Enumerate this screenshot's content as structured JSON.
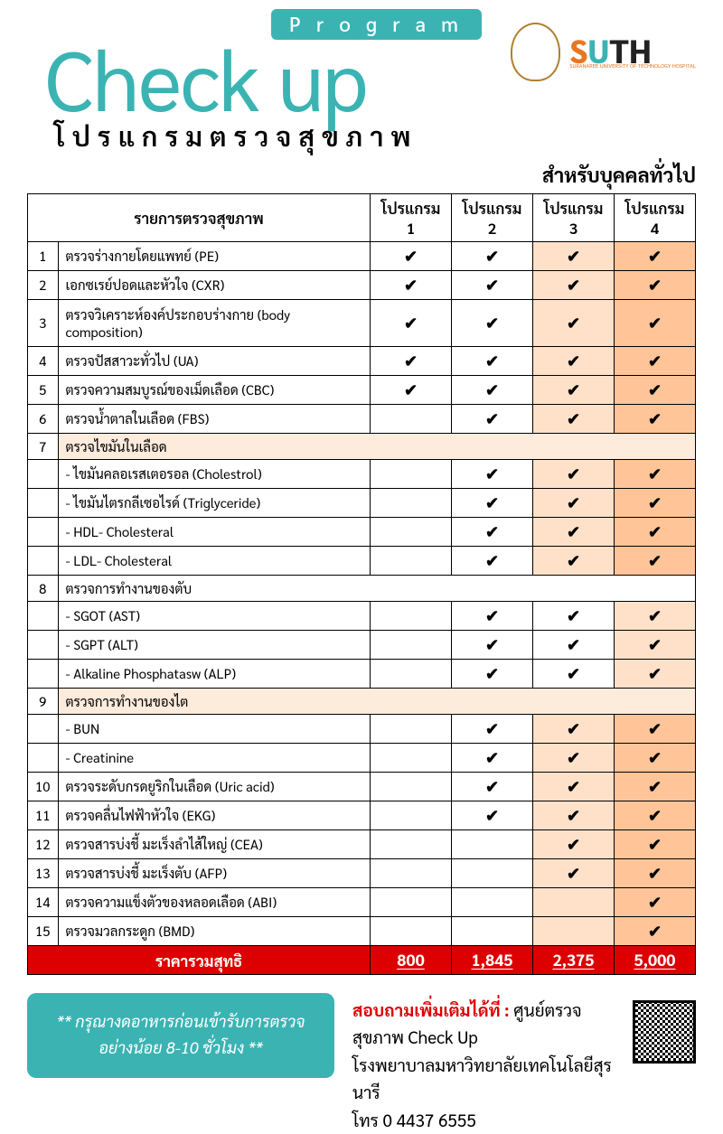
{
  "header": {
    "program_label": "P r o g r a m",
    "main_title": "Check up",
    "subtitle": "โปรแกรมตรวจสุขภาพ",
    "audience": "สำหรับบุคคลทั่วไป",
    "logo2_s": "S",
    "logo2_u": "U",
    "logo2_th": "TH",
    "logo2_sub": "SURANAREE UNIVERSITY OF TECHNOLOGY HOSPITAL"
  },
  "table": {
    "header_item": "รายการตรวจสุขภาพ",
    "programs": [
      "โปรแกรม 1",
      "โปรแกรม 2",
      "โปรแกรม 3",
      "โปรแกรม 4"
    ],
    "rows": [
      {
        "n": "1",
        "label": "ตรวจร่างกายโดยแพทย์ (PE)",
        "c": [
          true,
          true,
          true,
          true
        ]
      },
      {
        "n": "2",
        "label": "เอกซเรย์ปอดและหัวใจ (CXR)",
        "c": [
          true,
          true,
          true,
          true
        ]
      },
      {
        "n": "3",
        "label": "ตรวจวิเคราะห์องค์ประกอบร่างกาย (body composition)",
        "c": [
          true,
          true,
          true,
          true
        ],
        "tall": true
      },
      {
        "n": "4",
        "label": "ตรวจปัสสาวะทั่วไป (UA)",
        "c": [
          true,
          true,
          true,
          true
        ]
      },
      {
        "n": "5",
        "label": "ตรวจความสมบูรณ์ของเม็ดเลือด (CBC)",
        "c": [
          true,
          true,
          true,
          true
        ]
      },
      {
        "n": "6",
        "label": "ตรวจน้ำตาลในเลือด (FBS)",
        "c": [
          false,
          true,
          true,
          true
        ]
      },
      {
        "n": "7",
        "label": "ตรวจไขมันในเลือด",
        "group": true
      },
      {
        "sub": true,
        "label": "- ไขมันคลอเรสเตอรอล (Cholestrol)",
        "c": [
          false,
          true,
          true,
          true
        ]
      },
      {
        "sub": true,
        "label": "- ไขมันไตรกลีเซอไรด์ (Triglyceride)",
        "c": [
          false,
          true,
          true,
          true
        ]
      },
      {
        "sub": true,
        "label": "- HDL- Cholesteral",
        "c": [
          false,
          true,
          true,
          true
        ]
      },
      {
        "sub": true,
        "label": "- LDL- Cholesteral",
        "c": [
          false,
          true,
          true,
          true
        ]
      },
      {
        "n": "8",
        "label": "ตรวจการทำงานของตับ",
        "group": true,
        "whitegrp": true
      },
      {
        "sub": true,
        "label": "- SGOT (AST)",
        "c": [
          false,
          true,
          true,
          true
        ],
        "whitec3": true
      },
      {
        "sub": true,
        "label": "- SGPT (ALT)",
        "c": [
          false,
          true,
          true,
          true
        ],
        "whitec3": true
      },
      {
        "sub": true,
        "label": "- Alkaline Phosphatasw (ALP)",
        "c": [
          false,
          true,
          true,
          true
        ],
        "whitec3": true
      },
      {
        "n": "9",
        "label": "ตรวจการทำงานของไต",
        "group": true
      },
      {
        "sub": true,
        "label": "- BUN",
        "c": [
          false,
          true,
          true,
          true
        ]
      },
      {
        "sub": true,
        "label": "- Creatinine",
        "c": [
          false,
          true,
          true,
          true
        ]
      },
      {
        "n": "10",
        "label": "ตรวจระดับกรดยูริกในเลือด (Uric acid)",
        "c": [
          false,
          true,
          true,
          true
        ]
      },
      {
        "n": "11",
        "label": "ตรวจคลื่นไฟฟ้าหัวใจ (EKG)",
        "c": [
          false,
          true,
          true,
          true
        ]
      },
      {
        "n": "12",
        "label": "ตรวจสารบ่งชี้ มะเร็งลำไส้ใหญ่ (CEA)",
        "c": [
          false,
          false,
          true,
          true
        ]
      },
      {
        "n": "13",
        "label": "ตรวจสารบ่งชี้ มะเร็งตับ (AFP)",
        "c": [
          false,
          false,
          true,
          true
        ]
      },
      {
        "n": "14",
        "label": "ตรวจความแข็งตัวของหลอดเลือด (ABI)",
        "c": [
          false,
          false,
          false,
          true
        ]
      },
      {
        "n": "15",
        "label": "ตรวจมวลกระดูก (BMD)",
        "c": [
          false,
          false,
          false,
          true
        ]
      }
    ],
    "price_label": "ราคารวมสุทธิ",
    "prices": [
      "800",
      "1,845",
      "2,375",
      "5,000"
    ]
  },
  "footer": {
    "fasting_l1": "** กรุณางดอาหารก่อนเข้ารับการตรวจ",
    "fasting_l2": "อย่างน้อย 8-10 ชั่วโมง **",
    "contact_lead": "สอบถามเพิ่มเติมได้ที่ :",
    "contact_center": " ศูนย์ตรวจสุขภาพ Check Up",
    "contact_hospital": "โรงพยาบาลมหาวิทยาลัยเทคโนโลยีสุรนารี",
    "contact_phone": "โทร 0 4437 6555"
  },
  "colors": {
    "teal": "#3bb3b3",
    "red": "#dc0000",
    "p1": "#ffe7d4",
    "p2": "#ffd6b3",
    "p3": "#ffc08a",
    "p4": "#ff9e4d",
    "c3": "#ffe1ca",
    "c4": "#ffc599"
  }
}
